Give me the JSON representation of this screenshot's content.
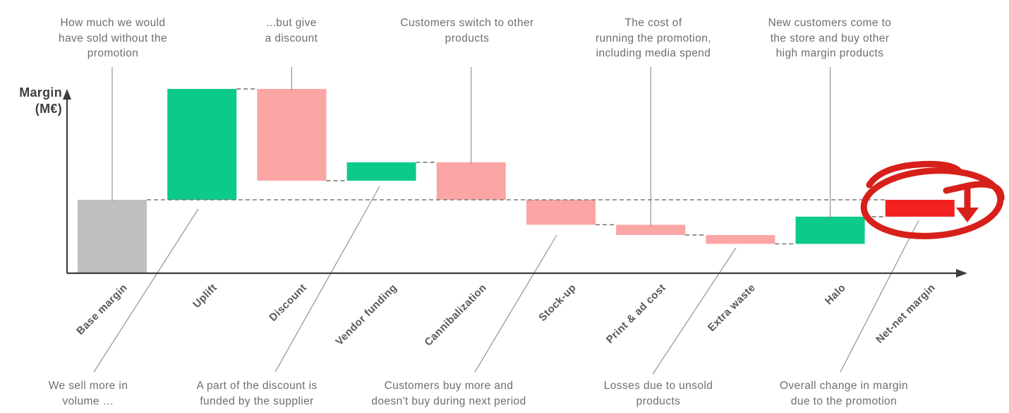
{
  "y_axis": {
    "label_lines": [
      "Margin",
      "(M€)"
    ]
  },
  "chart_data": {
    "type": "waterfall",
    "title": "",
    "xlabel": "",
    "ylabel": "Margin (M€)",
    "grid": false,
    "legend": false,
    "ylim": [
      0,
      260
    ],
    "baseline_value": 100,
    "categories": [
      "Base margin",
      "Uplift",
      "Discount",
      "Vendor funding",
      "Cannibalization",
      "Stock-up",
      "Print & ad cost",
      "Extra waste",
      "Halo",
      "Net-net margin"
    ],
    "bars": [
      {
        "label": "Base margin",
        "kind": "base",
        "delta": 100
      },
      {
        "label": "Uplift",
        "kind": "increase",
        "delta": 151
      },
      {
        "label": "Discount",
        "kind": "decrease",
        "delta": -125
      },
      {
        "label": "Vendor funding",
        "kind": "increase",
        "delta": 25
      },
      {
        "label": "Cannibalization",
        "kind": "decrease",
        "delta": -51
      },
      {
        "label": "Stock-up",
        "kind": "decrease",
        "delta": -34
      },
      {
        "label": "Print & ad cost",
        "kind": "decrease",
        "delta": -14
      },
      {
        "label": "Extra waste",
        "kind": "decrease",
        "delta": -12
      },
      {
        "label": "Halo",
        "kind": "increase",
        "delta": 37
      },
      {
        "label": "Net-net margin",
        "kind": "net-change",
        "delta": -23
      }
    ]
  },
  "colors": {
    "increase": "#0cc98c",
    "decrease": "#fba5a5",
    "base": "#bfbfbf",
    "net": "#f32220",
    "axis": "#3d3d3d",
    "dashed": "#7a7a7a",
    "leader": "#929292",
    "annotation_text": "#6e6e6e",
    "category_text": "#595959",
    "highlight": "#d62019"
  },
  "annotations_top": [
    {
      "target": "Base margin",
      "lines": [
        "How much we would",
        "have sold without the",
        "promotion"
      ]
    },
    {
      "target": "Discount",
      "lines": [
        "...but give",
        "a discount"
      ]
    },
    {
      "target": "Cannibalization",
      "lines": [
        "Customers switch to other",
        "products"
      ]
    },
    {
      "target": "Print & ad cost",
      "lines": [
        "The cost of",
        "running the promotion,",
        "including media spend"
      ]
    },
    {
      "target": "Halo",
      "lines": [
        "New customers come to",
        "the store and buy other",
        "high margin products"
      ]
    }
  ],
  "annotations_bottom": [
    {
      "target": "Uplift",
      "lines": [
        "We sell more in",
        "volume …"
      ]
    },
    {
      "target": "Vendor funding",
      "lines": [
        "A part of the discount is",
        "funded by the supplier"
      ]
    },
    {
      "target": "Stock-up",
      "lines": [
        "Customers buy more and",
        "doesn't buy during next period"
      ]
    },
    {
      "target": "Extra waste",
      "lines": [
        "Losses due to unsold",
        "products"
      ]
    },
    {
      "target": "Net-net margin",
      "lines": [
        "Overall change in margin",
        "due to the promotion"
      ]
    }
  ],
  "highlight": {
    "type": "hand-drawn-circle-with-down-arrow",
    "target": "Net-net margin"
  }
}
